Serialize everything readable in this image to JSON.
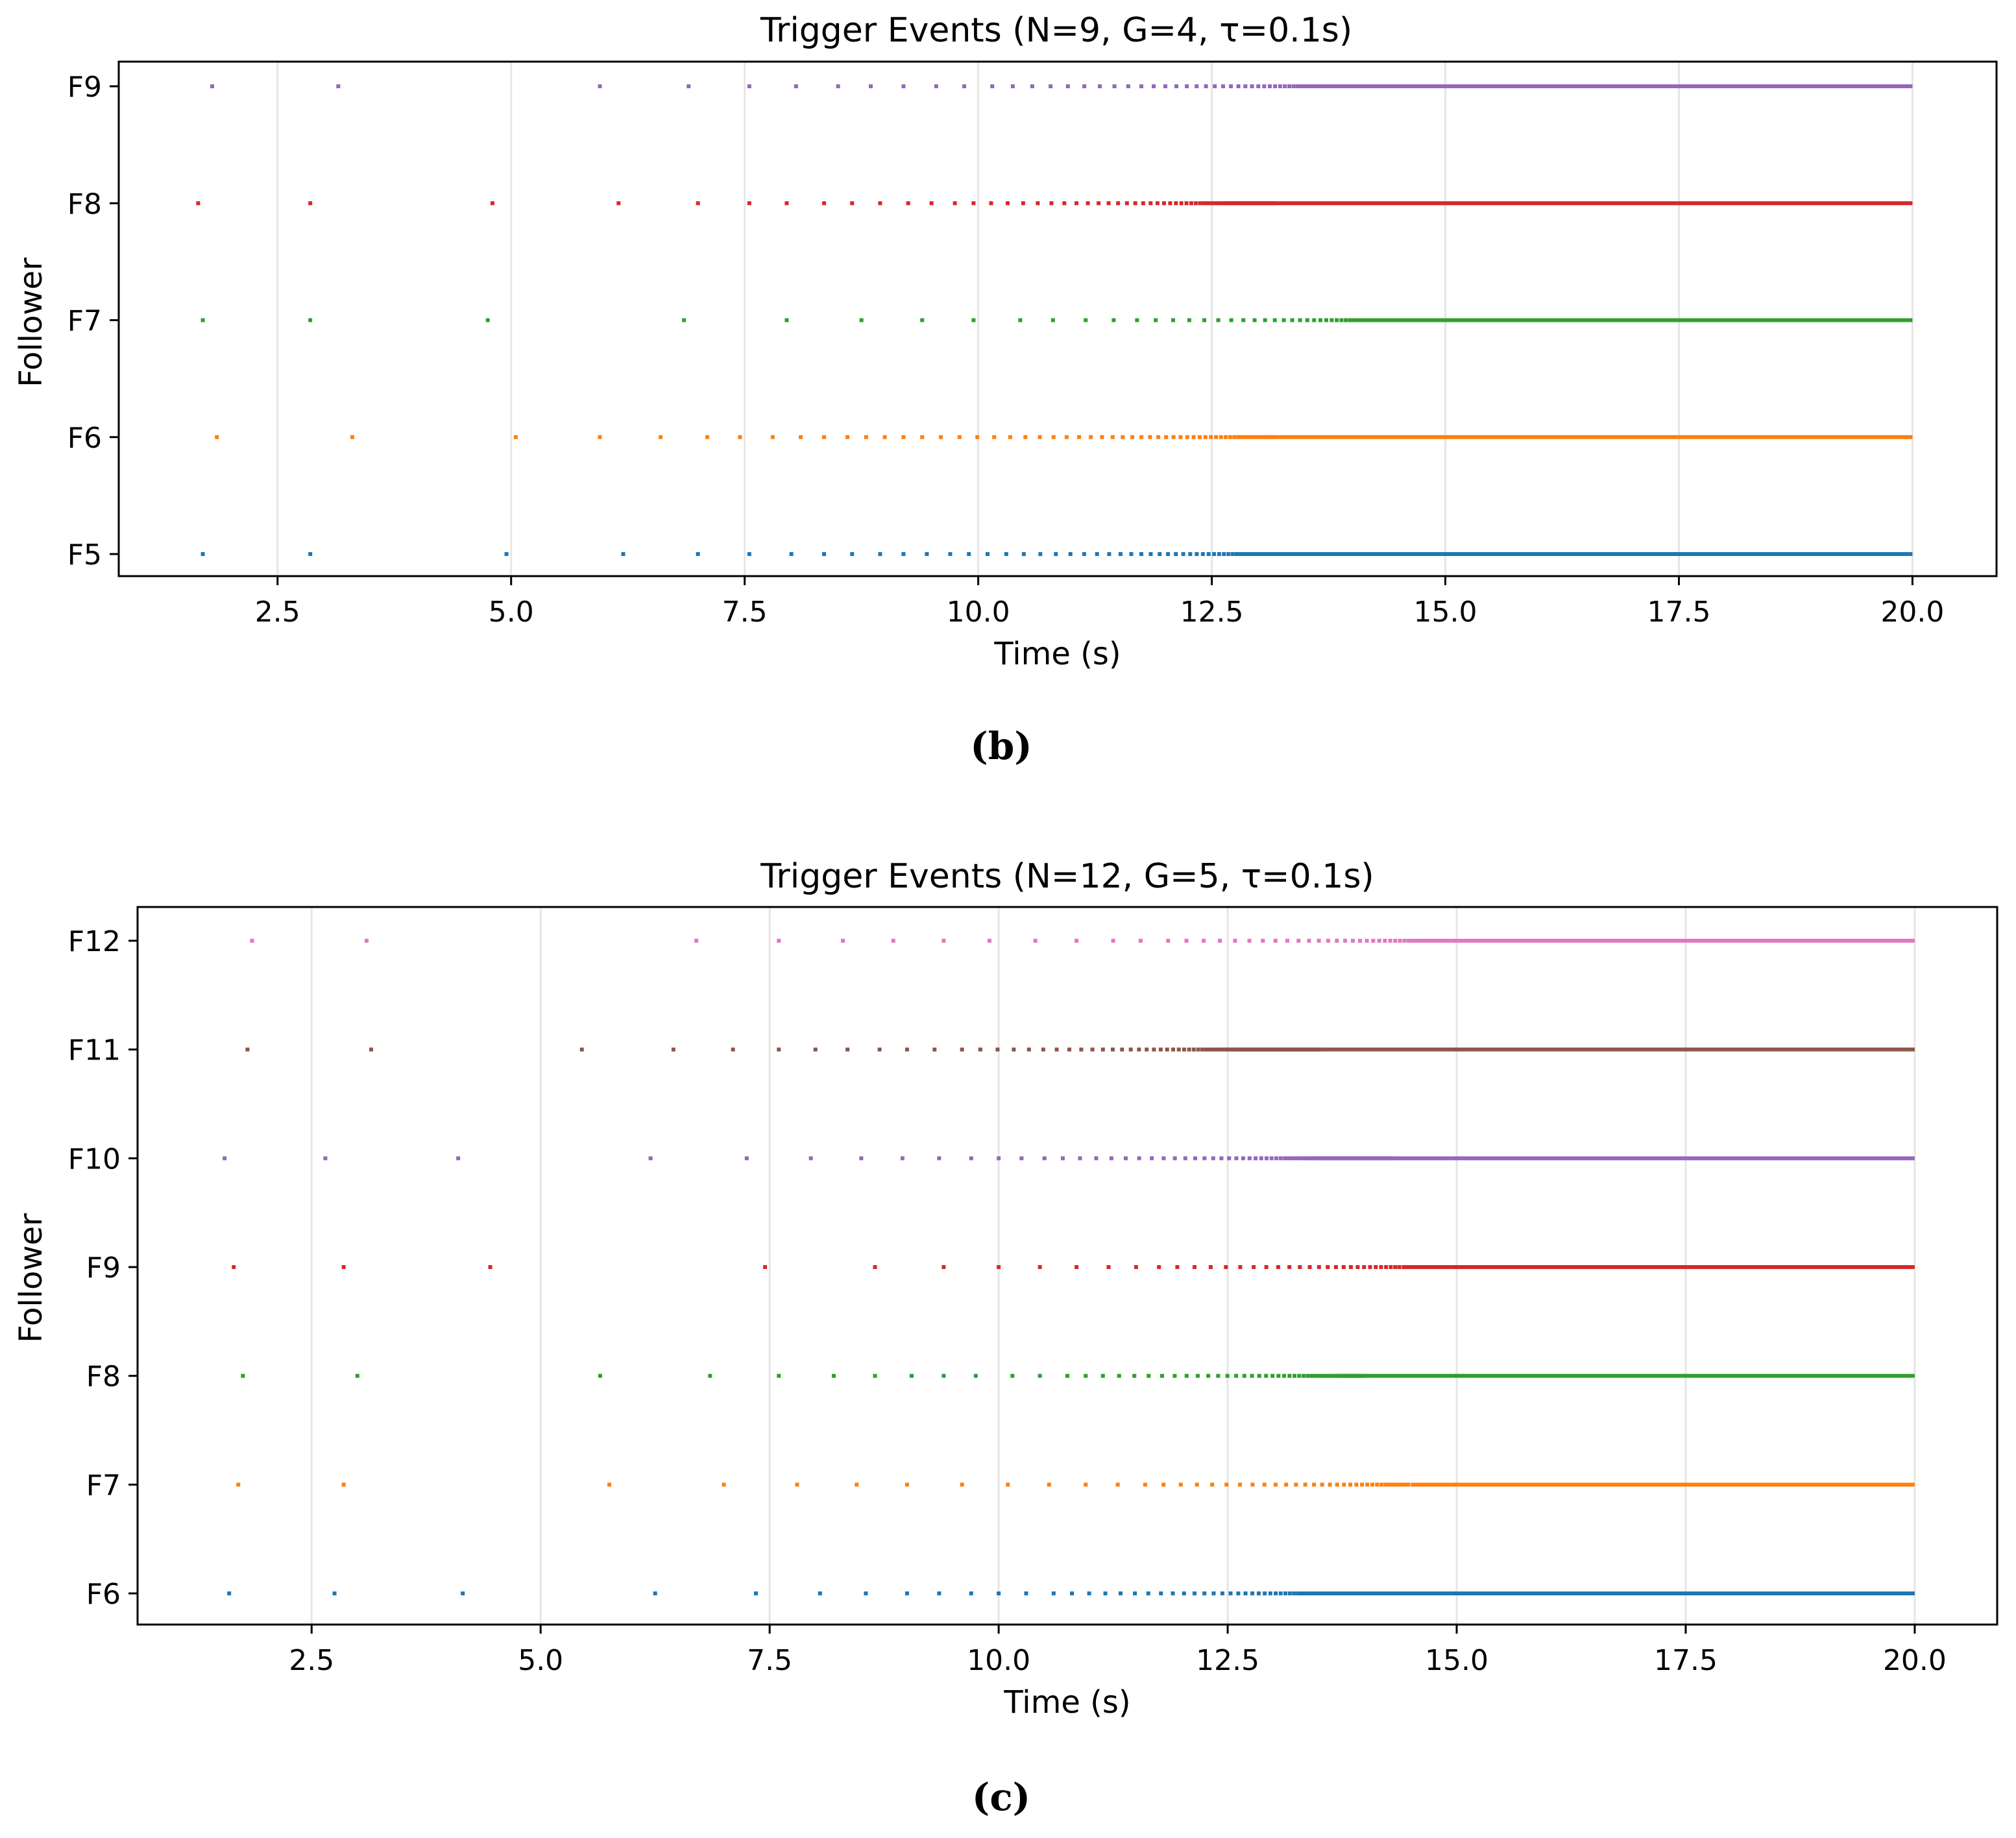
{
  "chart_data": [
    {
      "type": "scatter",
      "title": "Trigger Events (N=9, G=4, τ=0.1s)",
      "xlabel": "Time (s)",
      "ylabel": "Follower",
      "caption": "(b)",
      "xlim": [
        0.8,
        20.9
      ],
      "x_ticks": [
        2.5,
        5.0,
        7.5,
        10.0,
        12.5,
        15.0,
        17.5,
        20.0
      ],
      "x_tick_labels": [
        "2.5",
        "5.0",
        "7.5",
        "10.0",
        "12.5",
        "15.0",
        "17.5",
        "20.0"
      ],
      "grid": "x",
      "y_categories": [
        "F5",
        "F6",
        "F7",
        "F8",
        "F9"
      ],
      "series": [
        {
          "name": "F5",
          "color": "#1f77b4",
          "events": [
            1.7,
            2.85,
            4.95,
            6.2,
            7.0,
            7.55,
            8.0,
            8.35,
            8.65,
            8.95,
            9.2,
            9.45,
            9.7,
            9.9,
            10.1
          ],
          "dense_from": 10.1,
          "dense_spacing_start": 0.2,
          "dense_decay": 0.94,
          "solid_from": 13.5,
          "solid_to": 20.0
        },
        {
          "name": "F6",
          "color": "#ff7f0e",
          "events": [
            1.85,
            3.3,
            5.05,
            5.95,
            6.6,
            7.1,
            7.45,
            7.8,
            8.1,
            8.35,
            8.6,
            8.8,
            9.0,
            9.2,
            9.4,
            9.6
          ],
          "dense_from": 9.6,
          "dense_spacing_start": 0.2,
          "dense_decay": 0.95,
          "solid_from": 13.2,
          "solid_to": 20.0
        },
        {
          "name": "F7",
          "color": "#2ca02c",
          "events": [
            1.7,
            2.85,
            4.75,
            6.85,
            7.95,
            8.75,
            9.4,
            9.95,
            10.45,
            10.8,
            11.15,
            11.45,
            11.7
          ],
          "dense_from": 11.7,
          "dense_spacing_start": 0.2,
          "dense_decay": 0.93,
          "solid_from": 14.8,
          "solid_to": 20.0
        },
        {
          "name": "F8",
          "color": "#d62728",
          "events": [
            1.65,
            2.85,
            4.8,
            6.15,
            7.0,
            7.55,
            7.95,
            8.35,
            8.65,
            8.95,
            9.25,
            9.5,
            9.75
          ],
          "dense_from": 9.75,
          "dense_spacing_start": 0.2,
          "dense_decay": 0.94,
          "solid_from": 13.2,
          "solid_to": 20.0
        },
        {
          "name": "F9",
          "color": "#9467bd",
          "events": [
            1.8,
            3.15,
            5.95,
            6.9,
            7.55,
            8.05,
            8.5,
            8.85,
            9.2,
            9.55,
            9.85,
            10.15
          ],
          "dense_from": 10.15,
          "dense_spacing_start": 0.22,
          "dense_decay": 0.945,
          "solid_from": 14.2,
          "solid_to": 20.0
        }
      ]
    },
    {
      "type": "scatter",
      "title": "Trigger Events (N=12, G=5, τ=0.1s)",
      "xlabel": "Time (s)",
      "ylabel": "Follower",
      "caption": "(c)",
      "xlim": [
        0.6,
        20.9
      ],
      "x_ticks": [
        2.5,
        5.0,
        7.5,
        10.0,
        12.5,
        15.0,
        17.5,
        20.0
      ],
      "x_tick_labels": [
        "2.5",
        "5.0",
        "7.5",
        "10.0",
        "12.5",
        "15.0",
        "17.5",
        "20.0"
      ],
      "grid": "x",
      "y_categories": [
        "F6",
        "F7",
        "F8",
        "F9",
        "F10",
        "F11",
        "F12"
      ],
      "series": [
        {
          "name": "F6",
          "color": "#1f77b4",
          "events": [
            1.6,
            2.75,
            4.15,
            6.25,
            7.35,
            8.05,
            8.55,
            9.0,
            9.35,
            9.7,
            10.0,
            10.3,
            10.6
          ],
          "dense_from": 10.6,
          "dense_spacing_start": 0.2,
          "dense_decay": 0.94,
          "solid_from": 13.4,
          "solid_to": 20.0
        },
        {
          "name": "F7",
          "color": "#ff7f0e",
          "events": [
            1.7,
            2.85,
            5.75,
            7.0,
            7.8,
            8.45,
            9.0,
            9.6,
            10.1,
            10.55,
            10.95,
            11.3,
            11.6
          ],
          "dense_from": 11.6,
          "dense_spacing_start": 0.2,
          "dense_decay": 0.94,
          "solid_from": 14.5,
          "solid_to": 20.0
        },
        {
          "name": "F8",
          "color": "#2ca02c",
          "events": [
            1.75,
            3.0,
            5.65,
            6.85,
            7.6,
            8.2,
            8.65,
            9.05,
            9.4,
            9.75,
            10.15,
            10.45,
            10.75
          ],
          "dense_from": 10.75,
          "dense_spacing_start": 0.2,
          "dense_decay": 0.94,
          "solid_from": 14.0,
          "solid_to": 20.0
        },
        {
          "name": "F9",
          "color": "#d62728",
          "events": [
            1.65,
            2.85,
            4.45,
            7.45,
            8.65,
            9.4,
            10.0,
            10.45,
            10.85,
            11.2,
            11.5,
            11.75
          ],
          "dense_from": 11.75,
          "dense_spacing_start": 0.2,
          "dense_decay": 0.94,
          "solid_from": 14.4,
          "solid_to": 20.0
        },
        {
          "name": "F10",
          "color": "#9467bd",
          "events": [
            1.55,
            2.65,
            4.1,
            6.2,
            7.25,
            7.95,
            8.5,
            8.95,
            9.35,
            9.7,
            10.0,
            10.25,
            10.5
          ],
          "dense_from": 10.5,
          "dense_spacing_start": 0.2,
          "dense_decay": 0.94,
          "solid_from": 14.3,
          "solid_to": 20.0
        },
        {
          "name": "F11",
          "color": "#8c564b",
          "events": [
            1.8,
            3.15,
            5.45,
            6.45,
            7.1,
            7.6,
            8.0,
            8.35,
            8.7,
            9.0,
            9.3,
            9.6
          ],
          "dense_from": 9.6,
          "dense_spacing_start": 0.2,
          "dense_decay": 0.94,
          "solid_from": 13.5,
          "solid_to": 20.0
        },
        {
          "name": "F12",
          "color": "#e377c2",
          "events": [
            1.85,
            3.1,
            6.7,
            7.6,
            8.3,
            8.85,
            9.4,
            9.9,
            10.4,
            10.85,
            11.25,
            11.55,
            11.85
          ],
          "dense_from": 11.85,
          "dense_spacing_start": 0.2,
          "dense_decay": 0.94,
          "solid_from": 14.7,
          "solid_to": 20.0
        }
      ]
    }
  ]
}
